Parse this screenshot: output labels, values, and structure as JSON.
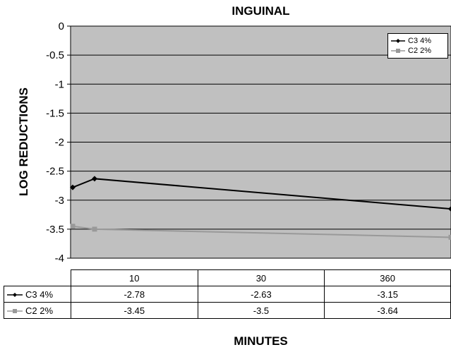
{
  "chart_data": {
    "type": "line",
    "title": "INGUINAL",
    "xlabel": "MINUTES",
    "ylabel": "LOG REDUCTIONS",
    "categories": [
      "10",
      "30",
      "360"
    ],
    "ylim": [
      -4,
      0
    ],
    "yticks": [
      "0",
      "-0.5",
      "-1",
      "-1.5",
      "-2",
      "-2.5",
      "-3",
      "-3.5",
      "-4"
    ],
    "grid": true,
    "legend_position": "top-right",
    "series": [
      {
        "name": "C3 4%",
        "values": [
          -2.78,
          -2.63,
          -3.15
        ],
        "display": [
          "-2.78",
          "-2.63",
          "-3.15"
        ],
        "color": "#000000",
        "marker": "diamond"
      },
      {
        "name": "C2 2%",
        "values": [
          -3.45,
          -3.5,
          -3.64
        ],
        "display": [
          "-3.45",
          "-3.5",
          "-3.64"
        ],
        "color": "#999999",
        "marker": "square"
      }
    ]
  }
}
